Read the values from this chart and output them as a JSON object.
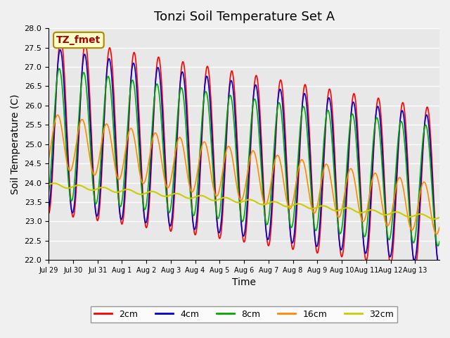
{
  "title": "Tonzi Soil Temperature Set A",
  "xlabel": "Time",
  "ylabel": "Soil Temperature (C)",
  "ylim": [
    22.0,
    28.0
  ],
  "yticks": [
    22.0,
    22.5,
    23.0,
    23.5,
    24.0,
    24.5,
    25.0,
    25.5,
    26.0,
    26.5,
    27.0,
    27.5,
    28.0
  ],
  "xtick_labels": [
    "Jul 29",
    "Jul 30",
    "Jul 31",
    "Aug 1",
    "Aug 2",
    "Aug 3",
    "Aug 4",
    "Aug 5",
    "Aug 6",
    "Aug 7",
    "Aug 8",
    "Aug 9",
    "Aug 10",
    "Aug 11",
    "Aug 12",
    "Aug 13"
  ],
  "colors": {
    "2cm": "#FF0000",
    "4cm": "#0000CC",
    "8cm": "#00AA00",
    "16cm": "#FF8800",
    "32cm": "#CCCC00"
  },
  "legend_labels": [
    "2cm",
    "4cm",
    "8cm",
    "16cm",
    "32cm"
  ],
  "annotation_text": "TZ_fmet",
  "annotation_color": "#AA0000",
  "annotation_bg": "#FFFFCC",
  "plot_bg_color": "#E8E8E8",
  "title_fontsize": 13,
  "label_fontsize": 10
}
